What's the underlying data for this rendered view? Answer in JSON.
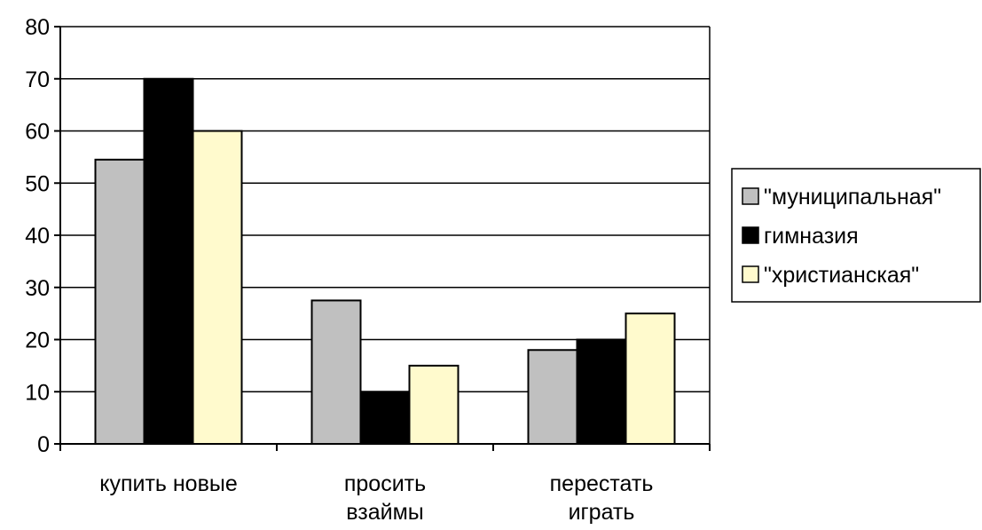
{
  "chart_data": {
    "type": "bar",
    "categories": [
      [
        "купить новые"
      ],
      [
        "просить",
        "взаймы"
      ],
      [
        "перестать",
        "играть"
      ]
    ],
    "series": [
      {
        "name": "\"муниципальная\"",
        "values": [
          54.5,
          27.5,
          18
        ],
        "color": "#c0c0c0"
      },
      {
        "name": "гимназия",
        "values": [
          70,
          10,
          20
        ],
        "color": "#000000"
      },
      {
        "name": "\"христианская\"",
        "values": [
          60,
          15,
          25
        ],
        "color": "#fffacd"
      }
    ],
    "yticks": [
      0,
      10,
      20,
      30,
      40,
      50,
      60,
      70,
      80
    ],
    "ylim": [
      0,
      80
    ],
    "grid": true,
    "legend_position": "right",
    "title": "",
    "xlabel": "",
    "ylabel": ""
  }
}
